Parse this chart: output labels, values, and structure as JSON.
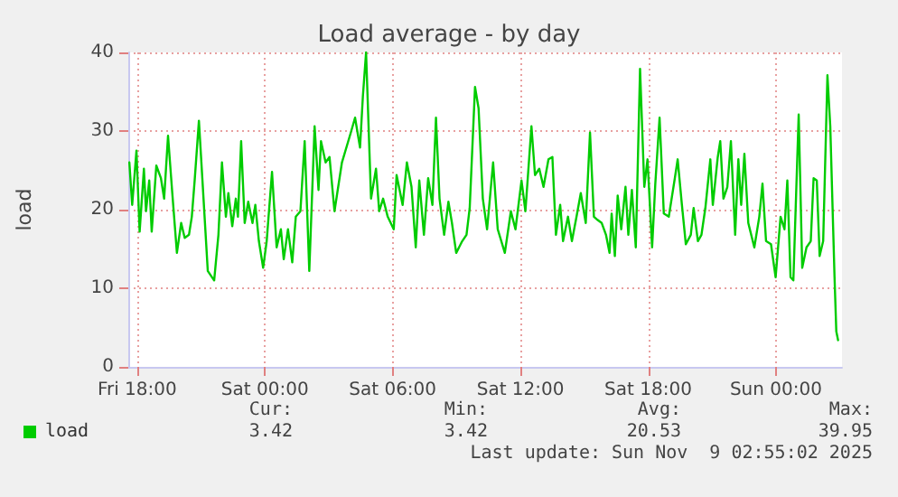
{
  "chart_data": {
    "type": "line",
    "title": "Load average - by day",
    "ylabel": "load",
    "xlim": [
      "2025-11-07T17:35",
      "2025-11-09T03:06"
    ],
    "xticks": [
      {
        "value": "2025-11-07T18:00",
        "label": "Fri 18:00"
      },
      {
        "value": "2025-11-08T00:00",
        "label": "Sat 00:00"
      },
      {
        "value": "2025-11-08T06:00",
        "label": "Sat 06:00"
      },
      {
        "value": "2025-11-08T12:00",
        "label": "Sat 12:00"
      },
      {
        "value": "2025-11-08T18:00",
        "label": "Sat 18:00"
      },
      {
        "value": "2025-11-09T00:00",
        "label": "Sun 00:00"
      }
    ],
    "ylim": [
      0,
      40
    ],
    "yticks": [
      0,
      10,
      20,
      30,
      40
    ],
    "grid": true,
    "legend": "bottom left",
    "marker": "none",
    "line_style": "solid",
    "annotations": [
      "Cur:",
      "Min:",
      "Avg:",
      "Max:",
      "3.42",
      "3.42",
      "20.53",
      "39.95",
      "Last update: Sun Nov  9 02:55:02 2025"
    ],
    "series": [
      {
        "name": "load",
        "color": "#00cc00",
        "x": [
          "2025-11-07T17:38",
          "2025-11-07T17:46",
          "2025-11-07T17:58",
          "2025-11-07T18:07",
          "2025-11-07T18:19",
          "2025-11-07T18:25",
          "2025-11-07T18:34",
          "2025-11-07T18:41",
          "2025-11-07T18:54",
          "2025-11-07T19:07",
          "2025-11-07T19:16",
          "2025-11-07T19:27",
          "2025-11-07T19:39",
          "2025-11-07T19:52",
          "2025-11-07T20:04",
          "2025-11-07T20:14",
          "2025-11-07T20:26",
          "2025-11-07T20:34",
          "2025-11-07T20:42",
          "2025-11-07T20:54",
          "2025-11-07T21:04",
          "2025-11-07T21:19",
          "2025-11-07T21:37",
          "2025-11-07T21:49",
          "2025-11-07T21:59",
          "2025-11-07T22:10",
          "2025-11-07T22:17",
          "2025-11-07T22:28",
          "2025-11-07T22:38",
          "2025-11-07T22:44",
          "2025-11-07T22:53",
          "2025-11-07T23:03",
          "2025-11-07T23:13",
          "2025-11-07T23:25",
          "2025-11-07T23:33",
          "2025-11-07T23:43",
          "2025-11-07T23:55",
          "2025-11-08T00:05",
          "2025-11-08T00:20",
          "2025-11-08T00:33",
          "2025-11-08T00:45",
          "2025-11-08T00:53",
          "2025-11-08T01:05",
          "2025-11-08T01:17",
          "2025-11-08T01:27",
          "2025-11-08T01:40",
          "2025-11-08T01:52",
          "2025-11-08T02:05",
          "2025-11-08T02:20",
          "2025-11-08T02:31",
          "2025-11-08T02:38",
          "2025-11-08T02:51",
          "2025-11-08T03:02",
          "2025-11-08T03:16",
          "2025-11-08T03:37",
          "2025-11-08T04:02",
          "2025-11-08T04:14",
          "2025-11-08T04:28",
          "2025-11-08T04:36",
          "2025-11-08T04:45",
          "2025-11-08T04:59",
          "2025-11-08T05:13",
          "2025-11-08T05:22",
          "2025-11-08T05:33",
          "2025-11-08T05:46",
          "2025-11-08T06:03",
          "2025-11-08T06:11",
          "2025-11-08T06:28",
          "2025-11-08T06:40",
          "2025-11-08T06:53",
          "2025-11-08T07:05",
          "2025-11-08T07:15",
          "2025-11-08T07:28",
          "2025-11-08T07:40",
          "2025-11-08T07:52",
          "2025-11-08T08:02",
          "2025-11-08T08:12",
          "2025-11-08T08:25",
          "2025-11-08T08:37",
          "2025-11-08T08:47",
          "2025-11-08T08:59",
          "2025-11-08T09:16",
          "2025-11-08T09:28",
          "2025-11-08T09:37",
          "2025-11-08T09:52",
          "2025-11-08T10:02",
          "2025-11-08T10:14",
          "2025-11-08T10:26",
          "2025-11-08T10:43",
          "2025-11-08T10:56",
          "2025-11-08T11:16",
          "2025-11-08T11:33",
          "2025-11-08T11:46",
          "2025-11-08T12:03",
          "2025-11-08T12:14",
          "2025-11-08T12:31",
          "2025-11-08T12:41",
          "2025-11-08T12:53",
          "2025-11-08T13:05",
          "2025-11-08T13:19",
          "2025-11-08T13:30",
          "2025-11-08T13:40",
          "2025-11-08T13:52",
          "2025-11-08T14:00",
          "2025-11-08T14:14",
          "2025-11-08T14:25",
          "2025-11-08T14:38",
          "2025-11-08T14:50",
          "2025-11-08T15:04",
          "2025-11-08T15:16",
          "2025-11-08T15:27",
          "2025-11-08T15:37",
          "2025-11-08T15:49",
          "2025-11-08T16:01",
          "2025-11-08T16:11",
          "2025-11-08T16:17",
          "2025-11-08T16:26",
          "2025-11-08T16:34",
          "2025-11-08T16:44",
          "2025-11-08T16:56",
          "2025-11-08T17:04",
          "2025-11-08T17:14",
          "2025-11-08T17:25",
          "2025-11-08T17:37",
          "2025-11-08T17:49",
          "2025-11-08T17:58",
          "2025-11-08T18:11",
          "2025-11-08T18:20",
          "2025-11-08T18:32",
          "2025-11-08T18:44",
          "2025-11-08T18:58",
          "2025-11-08T19:15",
          "2025-11-08T19:23",
          "2025-11-08T19:35",
          "2025-11-08T19:46",
          "2025-11-08T20:00",
          "2025-11-08T20:08",
          "2025-11-08T20:20",
          "2025-11-08T20:30",
          "2025-11-08T20:41",
          "2025-11-08T20:55",
          "2025-11-08T21:02",
          "2025-11-08T21:16",
          "2025-11-08T21:23",
          "2025-11-08T21:32",
          "2025-11-08T21:43",
          "2025-11-08T21:53",
          "2025-11-08T22:05",
          "2025-11-08T22:14",
          "2025-11-08T22:22",
          "2025-11-08T22:31",
          "2025-11-08T22:42",
          "2025-11-08T22:59",
          "2025-11-08T23:13",
          "2025-11-08T23:22",
          "2025-11-08T23:32",
          "2025-11-08T23:46",
          "2025-11-08T23:59",
          "2025-11-09T00:13",
          "2025-11-09T00:24",
          "2025-11-09T00:32",
          "2025-11-09T00:41",
          "2025-11-09T00:49",
          "2025-11-09T01:04",
          "2025-11-09T01:14",
          "2025-11-09T01:26",
          "2025-11-09T01:38",
          "2025-11-09T01:46",
          "2025-11-09T01:55",
          "2025-11-09T02:03",
          "2025-11-09T02:13",
          "2025-11-09T02:25",
          "2025-11-09T02:33",
          "2025-11-09T02:45",
          "2025-11-09T02:50",
          "2025-11-09T02:55"
        ],
        "values": [
          26,
          20.6,
          27.5,
          17.2,
          25.2,
          19.8,
          23.7,
          17.2,
          25.6,
          24,
          21.4,
          29.4,
          22.1,
          14.5,
          18.3,
          16.4,
          16.8,
          19.1,
          23.7,
          31.3,
          23.7,
          12.2,
          11,
          16.8,
          26,
          19.1,
          22.1,
          17.9,
          21.4,
          19.1,
          28.7,
          18.3,
          21,
          18.3,
          20.6,
          16,
          12.6,
          16,
          24.8,
          15.2,
          17.5,
          13.7,
          17.5,
          13.3,
          19.1,
          19.8,
          28.7,
          12.2,
          30.6,
          22.5,
          28.7,
          26,
          26.7,
          19.8,
          26,
          29.8,
          31.7,
          27.9,
          34.4,
          40,
          21.4,
          25.2,
          19.8,
          21.4,
          19.1,
          17.5,
          24.4,
          20.6,
          26,
          22.9,
          15.2,
          23.7,
          16.8,
          24,
          20.6,
          31.7,
          21.4,
          16.8,
          21,
          18.3,
          14.5,
          16,
          16.8,
          20.2,
          35.6,
          32.9,
          21.4,
          17.5,
          26,
          17.5,
          14.5,
          19.8,
          17.5,
          23.7,
          19.8,
          30.6,
          24.4,
          25.2,
          22.9,
          26.4,
          26.7,
          16.8,
          20.6,
          16,
          19.1,
          16,
          19.1,
          22.1,
          18.3,
          29.8,
          19.1,
          18.7,
          18.3,
          16.8,
          14.5,
          19.5,
          14.1,
          21.8,
          17.5,
          22.9,
          16.8,
          22.5,
          15.2,
          37.9,
          22.9,
          26.4,
          15.2,
          23.3,
          31.7,
          19.5,
          19.1,
          24,
          26.4,
          20.6,
          15.6,
          16.8,
          20.2,
          16,
          16.8,
          20.2,
          26.4,
          20.6,
          26.7,
          28.7,
          21.4,
          22.9,
          28.7,
          16.8,
          26.4,
          20.6,
          27.1,
          18.3,
          15.2,
          19.1,
          23.3,
          16,
          15.6,
          11.4,
          19.1,
          17.5,
          23.7,
          11.4,
          11,
          32.1,
          12.6,
          15.2,
          16,
          24,
          23.7,
          14.1,
          16,
          37.1,
          30.6,
          11.4,
          4.5,
          3.4
        ]
      }
    ]
  }
}
